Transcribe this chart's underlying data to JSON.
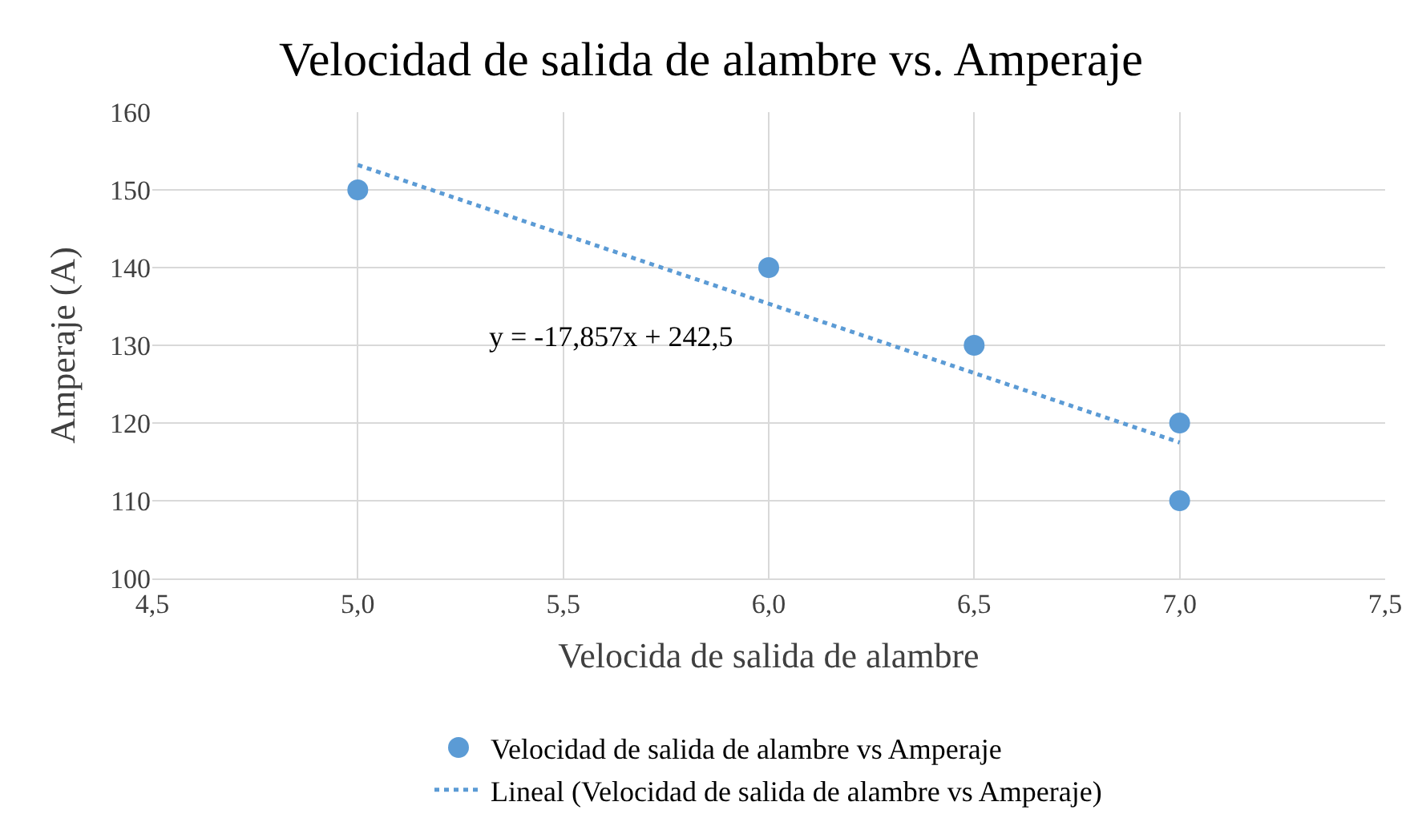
{
  "chart_data": {
    "type": "scatter",
    "title": "Velocidad de salida de alambre vs. Amperaje",
    "xlabel": "Velocida de salida de alambre",
    "ylabel": "Amperaje (A)",
    "xlim": [
      4.5,
      7.5
    ],
    "xticks": [
      {
        "value": 4.5,
        "label": "4,5"
      },
      {
        "value": 5,
        "label": "5,0"
      },
      {
        "value": 5.5,
        "label": "5,5"
      },
      {
        "value": 6,
        "label": "6,0"
      },
      {
        "value": 6.5,
        "label": "6,5"
      },
      {
        "value": 7,
        "label": "7,0"
      },
      {
        "value": 7.5,
        "label": "7,5"
      }
    ],
    "ylim": [
      100,
      160
    ],
    "yticks": [
      100,
      110,
      120,
      130,
      140,
      150,
      160
    ],
    "grid": true,
    "legend": "bottom",
    "series": [
      {
        "name": "Velocidad de salida de alambre vs Amperaje",
        "color": "#5b9bd5",
        "marker": "circle",
        "x": [
          5,
          6,
          6.5,
          7,
          7
        ],
        "values": [
          150,
          140,
          130,
          120,
          110
        ]
      },
      {
        "name": "Lineal (Velocidad de salida de alambre vs Amperaje)",
        "type": "line",
        "color": "#5b9bd5",
        "marker": "none",
        "line_style": "dotted",
        "x": [
          5,
          7
        ],
        "values": [
          153.2,
          117.5
        ]
      }
    ],
    "annotations": [
      "y = -17,857x + 242,5"
    ]
  }
}
